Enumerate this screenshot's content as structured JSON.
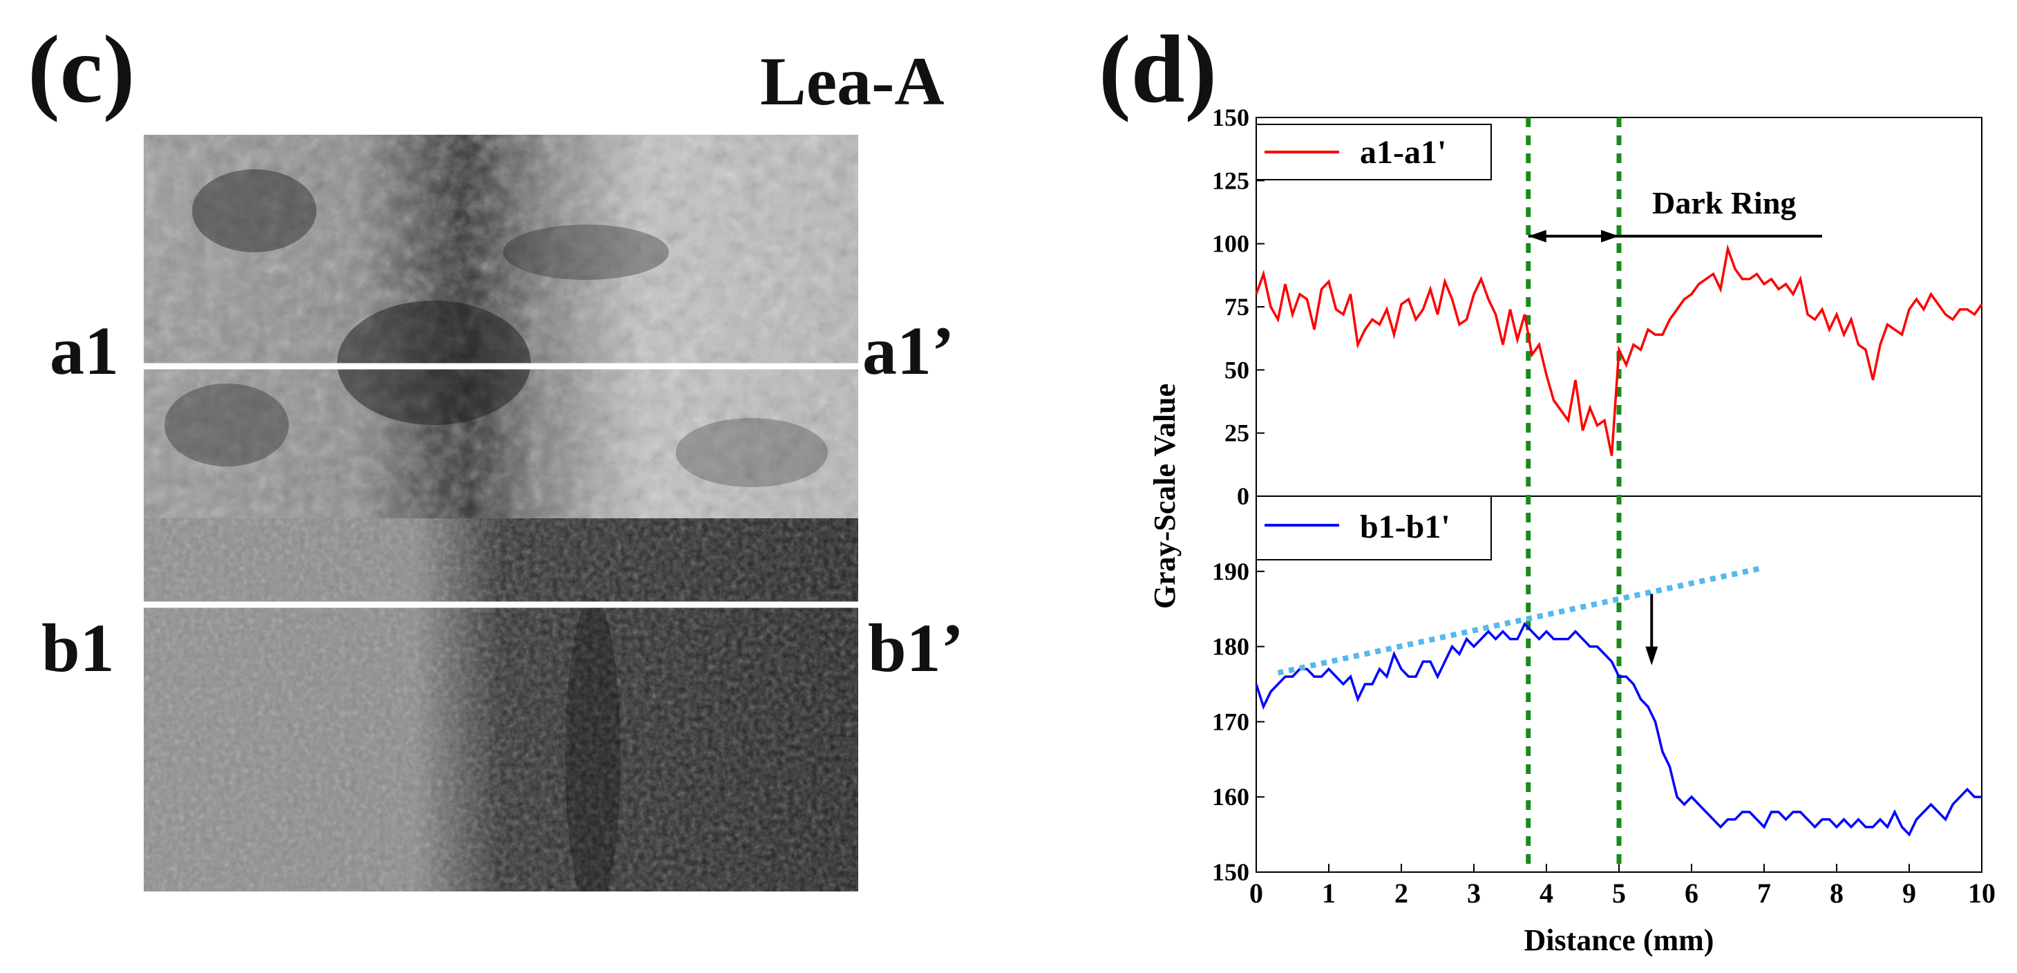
{
  "panel_c": {
    "label": "(c)",
    "sample": "Lea-A",
    "line_a_start": "a1",
    "line_a_end": "a1’",
    "line_b_start": "b1",
    "line_b_end": "b1’"
  },
  "panel_d": {
    "label": "(d)"
  },
  "chart_data": {
    "type": "line",
    "xlabel": "Distance (mm)",
    "ylabel": "Gray-Scale Value",
    "xlim": [
      0,
      10
    ],
    "x_ticks": [
      "0",
      "1",
      "2",
      "3",
      "4",
      "5",
      "6",
      "7",
      "8",
      "9",
      "10"
    ],
    "top_panel": {
      "ylim": [
        0,
        150
      ],
      "y_ticks": [
        "0",
        "25",
        "50",
        "75",
        "100",
        "125",
        "150"
      ],
      "legend": "a1-a1'",
      "color": "#ff0000",
      "annotation": "Dark Ring",
      "x": [
        0,
        0.1,
        0.2,
        0.3,
        0.4,
        0.5,
        0.6,
        0.7,
        0.8,
        0.9,
        1.0,
        1.1,
        1.2,
        1.3,
        1.4,
        1.5,
        1.6,
        1.7,
        1.8,
        1.9,
        2.0,
        2.1,
        2.2,
        2.3,
        2.4,
        2.5,
        2.6,
        2.7,
        2.8,
        2.9,
        3.0,
        3.1,
        3.2,
        3.3,
        3.4,
        3.5,
        3.6,
        3.7,
        3.8,
        3.9,
        4.0,
        4.1,
        4.2,
        4.3,
        4.4,
        4.5,
        4.6,
        4.7,
        4.8,
        4.9,
        5.0,
        5.1,
        5.2,
        5.3,
        5.4,
        5.5,
        5.6,
        5.7,
        5.8,
        5.9,
        6.0,
        6.1,
        6.2,
        6.3,
        6.4,
        6.5,
        6.6,
        6.7,
        6.8,
        6.9,
        7.0,
        7.1,
        7.2,
        7.3,
        7.4,
        7.5,
        7.6,
        7.7,
        7.8,
        7.9,
        8.0,
        8.1,
        8.2,
        8.3,
        8.4,
        8.5,
        8.6,
        8.7,
        8.8,
        8.9,
        9.0,
        9.1,
        9.2,
        9.3,
        9.4,
        9.5,
        9.6,
        9.7,
        9.8,
        9.9,
        10.0
      ],
      "y": [
        80,
        88,
        75,
        70,
        84,
        72,
        80,
        78,
        66,
        82,
        85,
        74,
        72,
        80,
        60,
        66,
        70,
        68,
        74,
        64,
        76,
        78,
        70,
        74,
        82,
        72,
        85,
        78,
        68,
        70,
        80,
        86,
        78,
        72,
        60,
        74,
        62,
        72,
        56,
        60,
        48,
        38,
        34,
        30,
        46,
        26,
        35,
        28,
        30,
        16,
        58,
        52,
        60,
        58,
        66,
        64,
        64,
        70,
        74,
        78,
        80,
        84,
        86,
        88,
        82,
        98,
        90,
        86,
        86,
        88,
        84,
        86,
        82,
        84,
        80,
        86,
        72,
        70,
        74,
        66,
        72,
        64,
        70,
        60,
        58,
        46,
        60,
        68,
        66,
        64,
        74,
        78,
        74,
        80,
        76,
        72,
        70,
        74,
        74,
        72,
        76
      ]
    },
    "bottom_panel": {
      "ylim": [
        150,
        200
      ],
      "y_ticks": [
        "150",
        "160",
        "170",
        "180",
        "190"
      ],
      "legend": "b1-b1'",
      "color": "#0000ff",
      "trend_color": "#55b8ee",
      "trend_x": [
        0.3,
        7.0
      ],
      "trend_y": [
        176.5,
        190.5
      ],
      "arrow_x": 5.45,
      "x": [
        0,
        0.1,
        0.2,
        0.3,
        0.4,
        0.5,
        0.6,
        0.7,
        0.8,
        0.9,
        1.0,
        1.1,
        1.2,
        1.3,
        1.4,
        1.5,
        1.6,
        1.7,
        1.8,
        1.9,
        2.0,
        2.1,
        2.2,
        2.3,
        2.4,
        2.5,
        2.6,
        2.7,
        2.8,
        2.9,
        3.0,
        3.1,
        3.2,
        3.3,
        3.4,
        3.5,
        3.6,
        3.7,
        3.8,
        3.9,
        4.0,
        4.1,
        4.2,
        4.3,
        4.4,
        4.5,
        4.6,
        4.7,
        4.8,
        4.9,
        5.0,
        5.1,
        5.2,
        5.3,
        5.4,
        5.5,
        5.6,
        5.7,
        5.8,
        5.9,
        6.0,
        6.1,
        6.2,
        6.3,
        6.4,
        6.5,
        6.6,
        6.7,
        6.8,
        6.9,
        7.0,
        7.1,
        7.2,
        7.3,
        7.4,
        7.5,
        7.6,
        7.7,
        7.8,
        7.9,
        8.0,
        8.1,
        8.2,
        8.3,
        8.4,
        8.5,
        8.6,
        8.7,
        8.8,
        8.9,
        9.0,
        9.1,
        9.2,
        9.3,
        9.4,
        9.5,
        9.6,
        9.7,
        9.8,
        9.9,
        10.0
      ],
      "y": [
        175,
        172,
        174,
        175,
        176,
        176,
        177,
        177,
        176,
        176,
        177,
        176,
        175,
        176,
        173,
        175,
        175,
        177,
        176,
        179,
        177,
        176,
        176,
        178,
        178,
        176,
        178,
        180,
        179,
        181,
        180,
        181,
        182,
        181,
        182,
        181,
        181,
        183,
        182,
        181,
        182,
        181,
        181,
        181,
        182,
        181,
        180,
        180,
        179,
        178,
        176,
        176,
        175,
        173,
        172,
        170,
        166,
        164,
        160,
        159,
        160,
        159,
        158,
        157,
        156,
        157,
        157,
        158,
        158,
        157,
        156,
        158,
        158,
        157,
        158,
        158,
        157,
        156,
        157,
        157,
        156,
        157,
        156,
        157,
        156,
        156,
        157,
        156,
        158,
        156,
        155,
        157,
        158,
        159,
        158,
        157,
        159,
        160,
        161,
        160,
        160
      ]
    }
  }
}
